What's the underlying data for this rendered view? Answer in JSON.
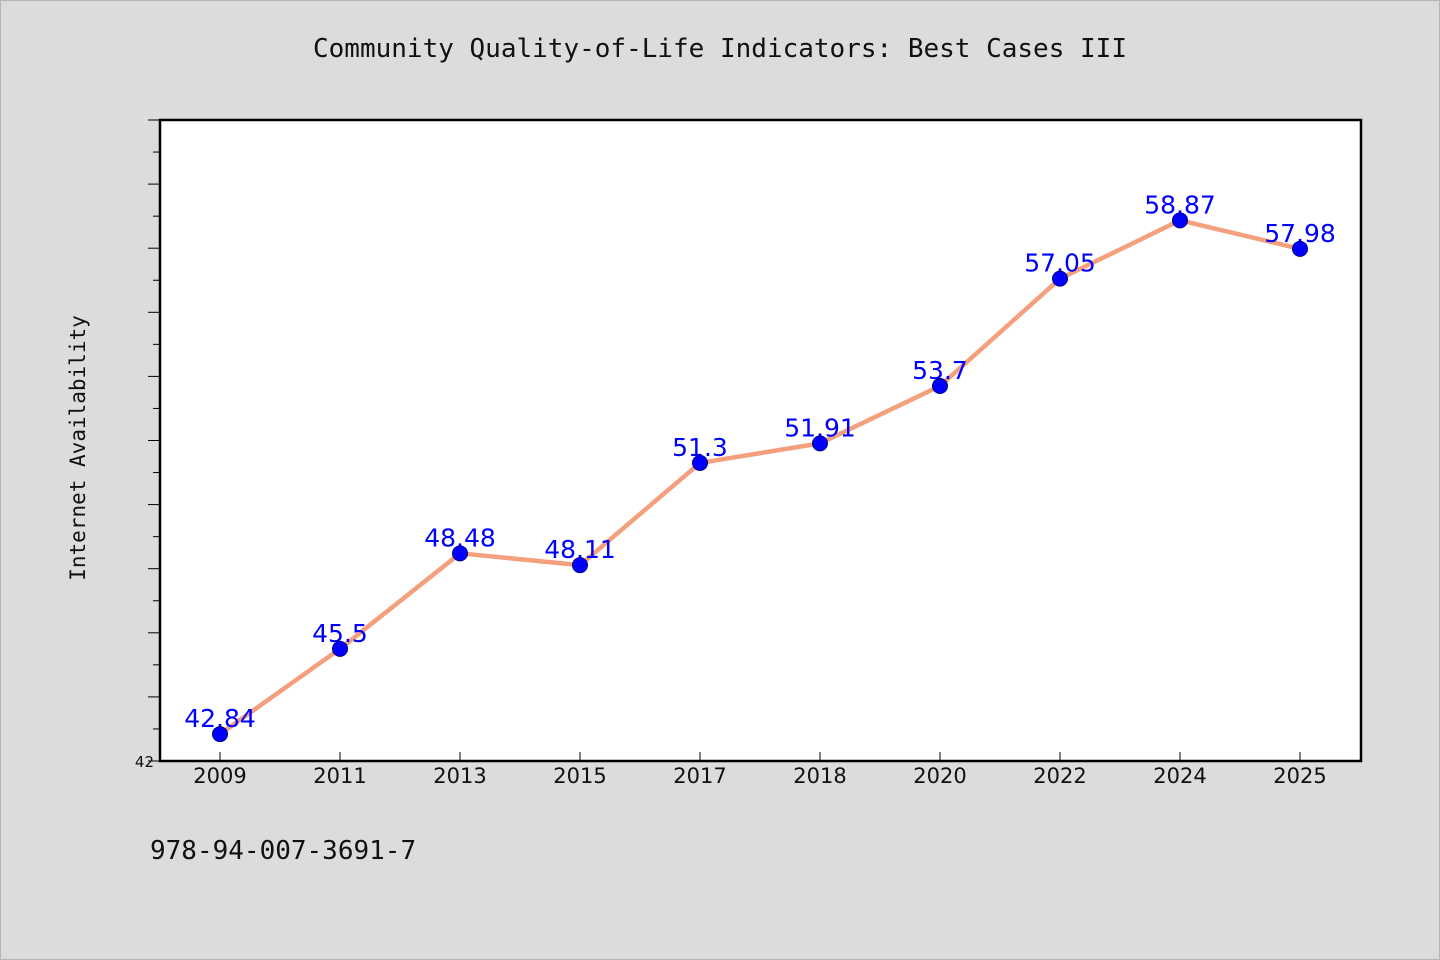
{
  "chart_data": {
    "type": "line",
    "title": "Community Quality-of-Life Indicators: Best Cases III",
    "xlabel": "",
    "ylabel": "Internet Availability",
    "categories": [
      "2009",
      "2011",
      "2013",
      "2015",
      "2017",
      "2018",
      "2020",
      "2022",
      "2024",
      "2025"
    ],
    "series": [
      {
        "values": [
          42.84,
          45.5,
          48.48,
          48.11,
          51.3,
          51.91,
          53.7,
          57.05,
          58.87,
          57.98
        ]
      }
    ],
    "data_labels": [
      "42.84",
      "45.5",
      "48.48",
      "48.11",
      "51.3",
      "51.91",
      "53.7",
      "57.05",
      "58.87",
      "57.98"
    ],
    "ylim": [
      42,
      62
    ],
    "y_tick_step": 1,
    "y_tick_label": "42",
    "grid": false,
    "legend": "none",
    "colors": {
      "line": "#f4a07c",
      "marker": "#0000ff",
      "data_label": "#0000ff",
      "frame": "#000000",
      "plot_bg": "#ffffff",
      "page_bg": "#dcdcdc"
    }
  },
  "footer": {
    "code": "978-94-007-3691-7"
  }
}
